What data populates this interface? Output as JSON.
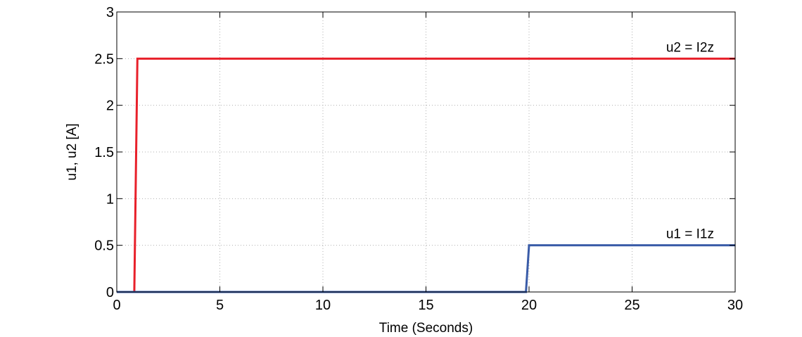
{
  "chart_data": {
    "type": "line",
    "title": "",
    "xlabel": "Time (Seconds)",
    "ylabel": "u1, u2 [A]",
    "xlim": [
      0,
      30
    ],
    "ylim": [
      0,
      3
    ],
    "xticks": [
      0,
      5,
      10,
      15,
      20,
      25,
      30
    ],
    "yticks": [
      0,
      0.5,
      1,
      1.5,
      2,
      2.5,
      3
    ],
    "xtick_labels": [
      "0",
      "5",
      "10",
      "15",
      "20",
      "25",
      "30"
    ],
    "ytick_labels": [
      "0",
      "0.5",
      "1",
      "1.5",
      "2",
      "2.5",
      "3"
    ],
    "grid": true,
    "legend": "none",
    "series": [
      {
        "name": "u2 = I2z",
        "color": "#e8202a",
        "x": [
          0,
          0.85,
          1.0,
          30
        ],
        "y": [
          0,
          0,
          2.5,
          2.5
        ]
      },
      {
        "name": "u1 = I1z",
        "color": "#3a5ca8",
        "x": [
          0,
          19.85,
          20.0,
          30
        ],
        "y": [
          0,
          0,
          0.5,
          0.5
        ]
      }
    ]
  }
}
